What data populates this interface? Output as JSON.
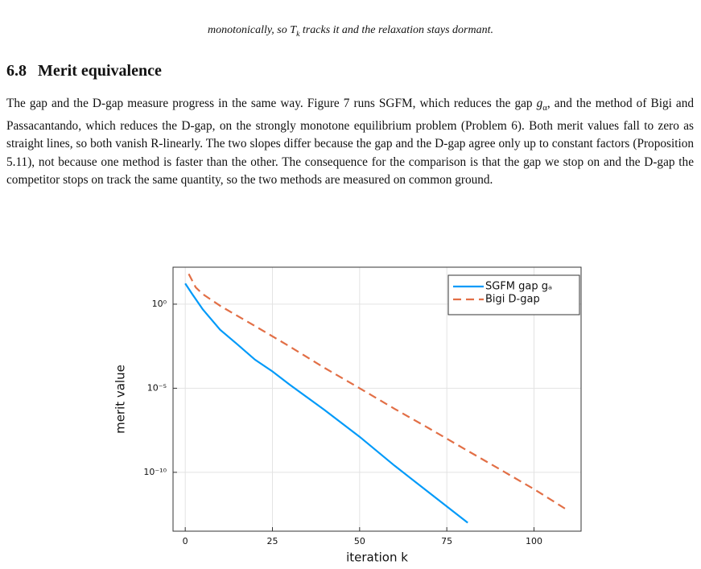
{
  "caption_tail": [
    "monotonically, so ",
    "T",
    "k",
    " tracks it and the relaxation stays dormant."
  ],
  "section": {
    "number": "6.8",
    "title": "Merit equivalence"
  },
  "paragraph": [
    "The gap and the D-gap measure progress in the same way. Figure 7 runs SGFM, which reduces the gap ",
    "g",
    "α",
    ", and the method of Bigi and Passacantando, which reduces the D-gap, on the strongly monotone equilibrium problem (Problem 6). Both merit values fall to zero as straight lines, so both vanish R-linearly. The two slopes differ because the gap and the D-gap agree only up to constant factors (Proposition 5.11), not because one method is faster than the other. The consequence for the comparison is that the gap we stop on and the D-gap the competitor stops on track the same quantity, so the two methods are measured on common ground."
  ],
  "chart_data": {
    "type": "line",
    "x_label": "iteration k",
    "y_label": "merit value",
    "xlim": [
      -3.5,
      113.5
    ],
    "xticks": [
      0,
      25,
      50,
      75,
      100
    ],
    "ylim": [
      3.16e-14,
      158
    ],
    "y_log": true,
    "yticks": [
      {
        "value": 1,
        "label": "10⁰"
      },
      {
        "value": 1e-05,
        "label": "10⁻⁵"
      },
      {
        "value": 1e-10,
        "label": "10⁻¹⁰"
      }
    ],
    "grid": true,
    "legend": "top-right",
    "series": [
      {
        "name": "SGFM gap gₐ",
        "color": "#009af9",
        "style": "solid",
        "x": [
          0,
          2,
          5,
          10,
          15,
          20,
          25,
          30,
          40,
          50,
          60,
          70,
          81
        ],
        "values": [
          17,
          4,
          0.5,
          0.03,
          0.004,
          0.0005,
          0.0001,
          1.6e-05,
          5e-07,
          1.3e-08,
          2.5e-10,
          6e-12,
          1e-13
        ]
      },
      {
        "name": "Bigi D-gap",
        "color": "#e26f46",
        "style": "dashed",
        "x": [
          1,
          3,
          5,
          10,
          20,
          30,
          40,
          50,
          60,
          70,
          80,
          90,
          100,
          110
        ],
        "values": [
          63,
          10,
          4,
          0.8,
          0.05,
          0.003,
          0.00016,
          1e-05,
          6e-07,
          4e-08,
          2.5e-09,
          1.6e-10,
          1e-11,
          5e-13
        ]
      }
    ]
  }
}
